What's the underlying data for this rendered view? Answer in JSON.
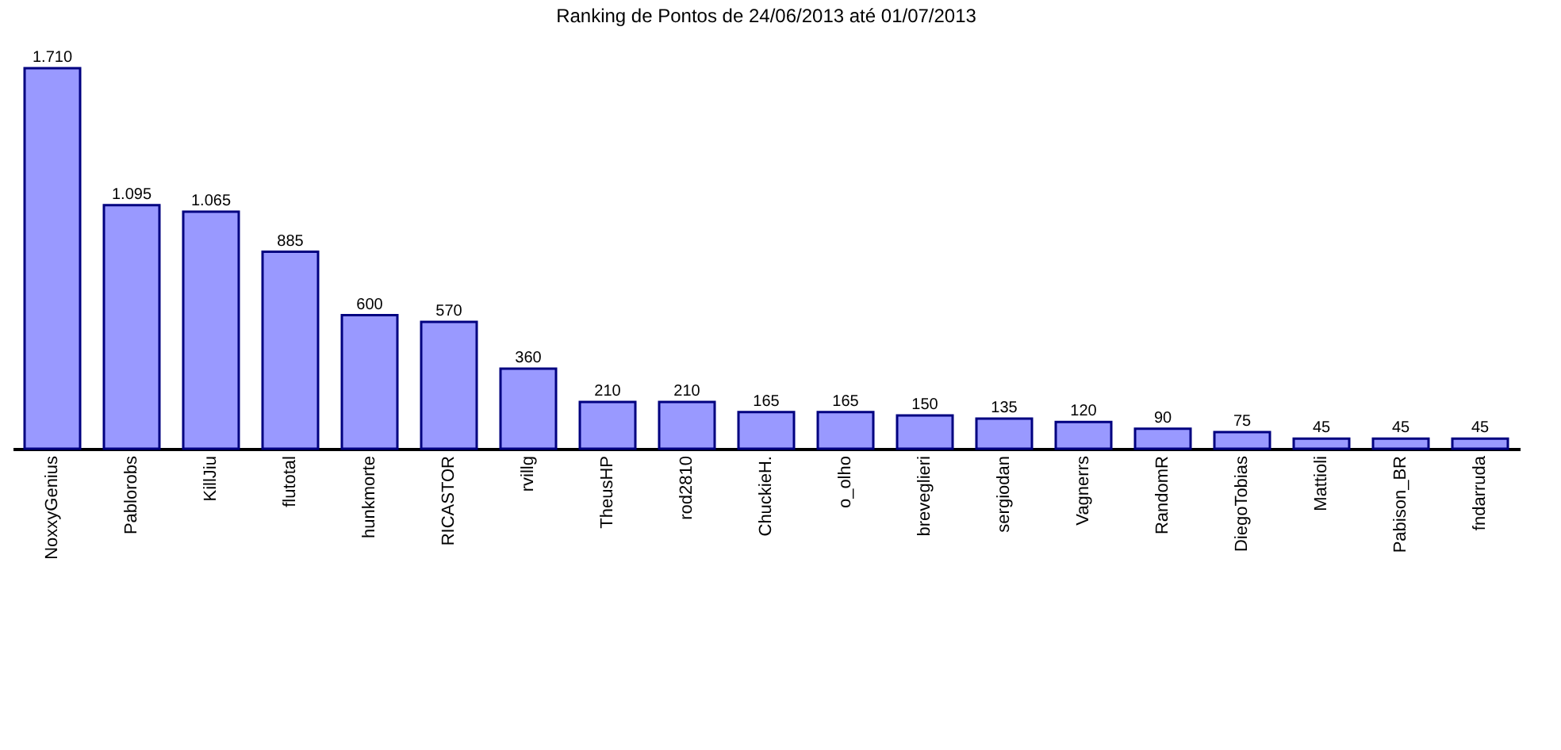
{
  "chart_data": {
    "type": "bar",
    "title": "Ranking de Pontos de 24/06/2013 até 01/07/2013",
    "categories": [
      "NoxxyGenius",
      "Pablorobs",
      "KillJiu",
      "flutotal",
      "hunkmorte",
      "RICASTOR",
      "rvillg",
      "TheusHP",
      "rod2810",
      "ChuckieH.",
      "o_olho",
      "breveglieri",
      "sergiodan",
      "Vagnerrs",
      "RandomR",
      "DiegoTobias",
      "Mattioli",
      "Pabison_BR",
      "fndarruda"
    ],
    "values": [
      1710,
      1095,
      1065,
      885,
      600,
      570,
      360,
      210,
      210,
      165,
      165,
      150,
      135,
      120,
      90,
      75,
      45,
      45,
      45
    ],
    "value_labels": [
      "1.710",
      "1.095",
      "1.065",
      "885",
      "600",
      "570",
      "360",
      "210",
      "210",
      "165",
      "165",
      "150",
      "135",
      "120",
      "90",
      "75",
      "45",
      "45",
      "45"
    ],
    "color": "#9999ff",
    "grid": false,
    "tick_labels": "x"
  }
}
